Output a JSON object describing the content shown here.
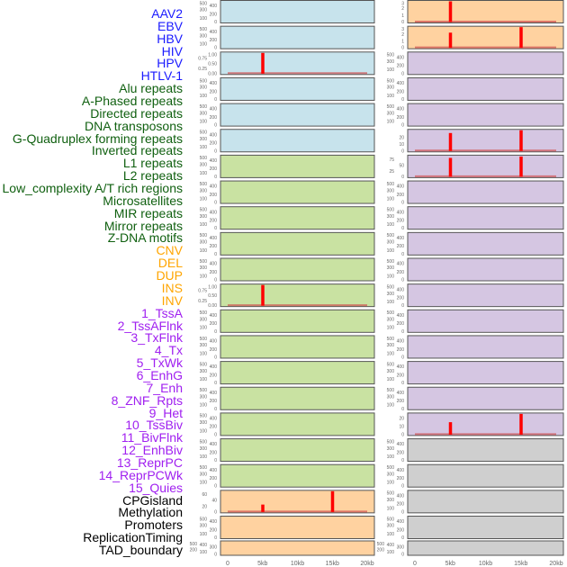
{
  "labels": [
    {
      "text": "AAV2",
      "group": "virus"
    },
    {
      "text": "EBV",
      "group": "virus"
    },
    {
      "text": "HBV",
      "group": "virus"
    },
    {
      "text": "HIV",
      "group": "virus"
    },
    {
      "text": "HPV",
      "group": "virus"
    },
    {
      "text": "HTLV-1",
      "group": "virus"
    },
    {
      "text": "Alu repeats",
      "group": "repeat"
    },
    {
      "text": "A-Phased repeats",
      "group": "repeat"
    },
    {
      "text": "Directed repeats",
      "group": "repeat"
    },
    {
      "text": "DNA transposons",
      "group": "repeat"
    },
    {
      "text": "G-Quadruplex forming repeats",
      "group": "repeat"
    },
    {
      "text": "Inverted repeats",
      "group": "repeat"
    },
    {
      "text": "L1 repeats",
      "group": "repeat"
    },
    {
      "text": "L2 repeats",
      "group": "repeat"
    },
    {
      "text": "Low_complexity A/T rich regions",
      "group": "repeat"
    },
    {
      "text": "Microsatellites",
      "group": "repeat"
    },
    {
      "text": "MIR repeats",
      "group": "repeat"
    },
    {
      "text": "Mirror repeats",
      "group": "repeat"
    },
    {
      "text": "Z-DNA motifs",
      "group": "repeat"
    },
    {
      "text": "CNV",
      "group": "sv"
    },
    {
      "text": "DEL",
      "group": "sv"
    },
    {
      "text": "DUP",
      "group": "sv"
    },
    {
      "text": "INS",
      "group": "sv"
    },
    {
      "text": "INV",
      "group": "sv"
    },
    {
      "text": "1_TssA",
      "group": "chromhmm"
    },
    {
      "text": "2_TssAFlnk",
      "group": "chromhmm"
    },
    {
      "text": "3_TxFlnk",
      "group": "chromhmm"
    },
    {
      "text": "4_Tx",
      "group": "chromhmm"
    },
    {
      "text": "5_TxWk",
      "group": "chromhmm"
    },
    {
      "text": "6_EnhG",
      "group": "chromhmm"
    },
    {
      "text": "7_Enh",
      "group": "chromhmm"
    },
    {
      "text": "8_ZNF_Rpts",
      "group": "chromhmm"
    },
    {
      "text": "9_Het",
      "group": "chromhmm"
    },
    {
      "text": "10_TssBiv",
      "group": "chromhmm"
    },
    {
      "text": "11_BivFlnk",
      "group": "chromhmm"
    },
    {
      "text": "12_EnhBiv",
      "group": "chromhmm"
    },
    {
      "text": "13_ReprPC",
      "group": "chromhmm"
    },
    {
      "text": "14_ReprPCWk",
      "group": "chromhmm"
    },
    {
      "text": "15_Quies",
      "group": "chromhmm"
    },
    {
      "text": "CPGisland",
      "group": "other"
    },
    {
      "text": "Methylation",
      "group": "other"
    },
    {
      "text": "Promoters",
      "group": "other"
    },
    {
      "text": "ReplicationTiming",
      "group": "other"
    },
    {
      "text": "TAD_boundary",
      "group": "other"
    }
  ],
  "colors": {
    "label_virus": "#1a1aff",
    "label_repeat": "#106010",
    "label_sv": "#ffa500",
    "label_chromhmm": "#a020f0",
    "label_other": "#000000",
    "blue": "#c7e3ec",
    "green": "#c9e2a2",
    "orange": "#ffd2a0",
    "purple": "#d5c6e2",
    "grey": "#cfcfcf",
    "spike": "#ff0000",
    "baseline": "#d05050"
  },
  "chart_data": {
    "type": "bar",
    "xlim": [
      0,
      20
    ],
    "x_ticks": [
      "0",
      "5kb",
      "10kb",
      "15kb",
      "20kb"
    ],
    "columns": [
      {
        "panels": [
          {
            "fill": "blue",
            "ticks": [
              "0",
              "100",
              "200",
              "300",
              "400",
              "500"
            ],
            "ymax": 500,
            "bars": []
          },
          {
            "fill": "blue",
            "ticks": [
              "0",
              "100",
              "200",
              "300",
              "400",
              "500"
            ],
            "ymax": 500,
            "bars": []
          },
          {
            "fill": "blue",
            "ticks": [
              "0.00",
              "0.25",
              "0.50",
              "0.75",
              "1.00"
            ],
            "ymax": 1,
            "bars": [
              {
                "x": 5,
                "y": 1
              }
            ]
          },
          {
            "fill": "blue",
            "ticks": [
              "0",
              "100",
              "200",
              "300",
              "400",
              "500"
            ],
            "ymax": 500,
            "bars": []
          },
          {
            "fill": "blue",
            "ticks": [
              "0",
              "100",
              "200",
              "300",
              "400",
              "500"
            ],
            "ymax": 500,
            "bars": []
          },
          {
            "fill": "blue",
            "ticks": [
              "0",
              "100",
              "200",
              "300",
              "400",
              "500"
            ],
            "ymax": 500,
            "bars": []
          },
          {
            "fill": "green",
            "ticks": [
              "0",
              "100",
              "200",
              "300",
              "400",
              "500"
            ],
            "ymax": 500,
            "bars": []
          },
          {
            "fill": "green",
            "ticks": [
              "0",
              "100",
              "200",
              "300",
              "400",
              "500"
            ],
            "ymax": 500,
            "bars": []
          },
          {
            "fill": "green",
            "ticks": [
              "0",
              "100",
              "200",
              "300",
              "400",
              "500"
            ],
            "ymax": 500,
            "bars": []
          },
          {
            "fill": "green",
            "ticks": [
              "0",
              "100",
              "200",
              "300",
              "400",
              "500"
            ],
            "ymax": 500,
            "bars": []
          },
          {
            "fill": "green",
            "ticks": [
              "0",
              "100",
              "200",
              "300",
              "400",
              "500"
            ],
            "ymax": 500,
            "bars": []
          },
          {
            "fill": "green",
            "ticks": [
              "0.00",
              "0.25",
              "0.50",
              "0.75",
              "1.00"
            ],
            "ymax": 1,
            "bars": [
              {
                "x": 5,
                "y": 1
              }
            ]
          },
          {
            "fill": "green",
            "ticks": [
              "0",
              "100",
              "200",
              "300",
              "400",
              "500"
            ],
            "ymax": 500,
            "bars": []
          },
          {
            "fill": "green",
            "ticks": [
              "0",
              "100",
              "200",
              "300",
              "400",
              "500"
            ],
            "ymax": 500,
            "bars": []
          },
          {
            "fill": "green",
            "ticks": [
              "0",
              "100",
              "200",
              "300",
              "400",
              "500"
            ],
            "ymax": 500,
            "bars": []
          },
          {
            "fill": "green",
            "ticks": [
              "0",
              "100",
              "200",
              "300",
              "400",
              "500"
            ],
            "ymax": 500,
            "bars": []
          },
          {
            "fill": "green",
            "ticks": [
              "0",
              "100",
              "200",
              "300",
              "400",
              "500"
            ],
            "ymax": 500,
            "bars": []
          },
          {
            "fill": "green",
            "ticks": [
              "0",
              "100",
              "200",
              "300",
              "400",
              "500"
            ],
            "ymax": 500,
            "bars": []
          },
          {
            "fill": "green",
            "ticks": [
              "0",
              "100",
              "200",
              "300",
              "400",
              "500"
            ],
            "ymax": 500,
            "bars": []
          },
          {
            "fill": "orange",
            "ticks": [
              "0",
              "20",
              "40",
              "60"
            ],
            "ymax": 70,
            "bars": [
              {
                "x": 5,
                "y": 25
              },
              {
                "x": 15,
                "y": 70
              }
            ]
          },
          {
            "fill": "orange",
            "ticks": [
              "0",
              "100",
              "200",
              "300",
              "400",
              "500"
            ],
            "ymax": 500,
            "bars": []
          },
          {
            "fill": "orange",
            "ticks": [
              "0",
              "100",
              "200",
              "300",
              "400",
              "500"
            ],
            "ymax": 500,
            "bars": [],
            "short": true
          }
        ]
      },
      {
        "panels": [
          {
            "fill": "orange",
            "ticks": [
              "0",
              "1",
              "2",
              "3"
            ],
            "ymax": 3,
            "bars": [
              {
                "x": 5,
                "y": 3
              }
            ]
          },
          {
            "fill": "orange",
            "ticks": [
              "0",
              "1",
              "2",
              "3"
            ],
            "ymax": 3,
            "bars": [
              {
                "x": 5,
                "y": 2.2
              },
              {
                "x": 15,
                "y": 3
              }
            ]
          },
          {
            "fill": "purple",
            "ticks": [
              "0",
              "100",
              "200",
              "300",
              "400",
              "500"
            ],
            "ymax": 500,
            "bars": []
          },
          {
            "fill": "purple",
            "ticks": [
              "0",
              "100",
              "200",
              "300",
              "400",
              "500"
            ],
            "ymax": 500,
            "bars": []
          },
          {
            "fill": "purple",
            "ticks": [
              "0",
              "100",
              "200",
              "300",
              "400",
              "500"
            ],
            "ymax": 500,
            "bars": []
          },
          {
            "fill": "purple",
            "ticks": [
              "0",
              "10",
              "20"
            ],
            "ymax": 30,
            "bars": [
              {
                "x": 5,
                "y": 26
              },
              {
                "x": 15,
                "y": 30
              }
            ]
          },
          {
            "fill": "purple",
            "ticks": [
              "0",
              "25",
              "50",
              "75"
            ],
            "ymax": 90,
            "bars": [
              {
                "x": 5,
                "y": 82
              },
              {
                "x": 15,
                "y": 88
              }
            ]
          },
          {
            "fill": "purple",
            "ticks": [
              "0",
              "100",
              "200",
              "300",
              "400",
              "500"
            ],
            "ymax": 500,
            "bars": []
          },
          {
            "fill": "purple",
            "ticks": [
              "0",
              "100",
              "200",
              "300",
              "400",
              "500"
            ],
            "ymax": 500,
            "bars": []
          },
          {
            "fill": "purple",
            "ticks": [
              "0",
              "100",
              "200",
              "300",
              "400",
              "500"
            ],
            "ymax": 500,
            "bars": []
          },
          {
            "fill": "purple",
            "ticks": [
              "0",
              "100",
              "200",
              "300",
              "400",
              "500"
            ],
            "ymax": 500,
            "bars": []
          },
          {
            "fill": "purple",
            "ticks": [
              "0",
              "100",
              "200",
              "300",
              "400",
              "500"
            ],
            "ymax": 500,
            "bars": []
          },
          {
            "fill": "purple",
            "ticks": [
              "0",
              "100",
              "200",
              "300",
              "400",
              "500"
            ],
            "ymax": 500,
            "bars": []
          },
          {
            "fill": "purple",
            "ticks": [
              "0",
              "100",
              "200",
              "300",
              "400",
              "500"
            ],
            "ymax": 500,
            "bars": []
          },
          {
            "fill": "purple",
            "ticks": [
              "0",
              "100",
              "200",
              "300",
              "400",
              "500"
            ],
            "ymax": 500,
            "bars": []
          },
          {
            "fill": "purple",
            "ticks": [
              "0",
              "100",
              "200",
              "300",
              "400",
              "500"
            ],
            "ymax": 500,
            "bars": []
          },
          {
            "fill": "purple",
            "ticks": [
              "0",
              "10",
              "20"
            ],
            "ymax": 25,
            "bars": [
              {
                "x": 5,
                "y": 15
              },
              {
                "x": 15,
                "y": 25
              }
            ]
          },
          {
            "fill": "grey",
            "ticks": [
              "0",
              "100",
              "200",
              "300",
              "400",
              "500"
            ],
            "ymax": 500,
            "bars": []
          },
          {
            "fill": "grey",
            "ticks": [
              "0",
              "100",
              "200",
              "300",
              "400",
              "500"
            ],
            "ymax": 500,
            "bars": []
          },
          {
            "fill": "grey",
            "ticks": [
              "0",
              "100",
              "200",
              "300",
              "400",
              "500"
            ],
            "ymax": 500,
            "bars": []
          },
          {
            "fill": "grey",
            "ticks": [
              "0",
              "100",
              "200",
              "300",
              "400",
              "500"
            ],
            "ymax": 500,
            "bars": []
          },
          {
            "fill": "grey",
            "ticks": [
              "0",
              "100",
              "200",
              "300",
              "400",
              "500"
            ],
            "ymax": 500,
            "bars": [],
            "short": true
          }
        ]
      }
    ]
  }
}
